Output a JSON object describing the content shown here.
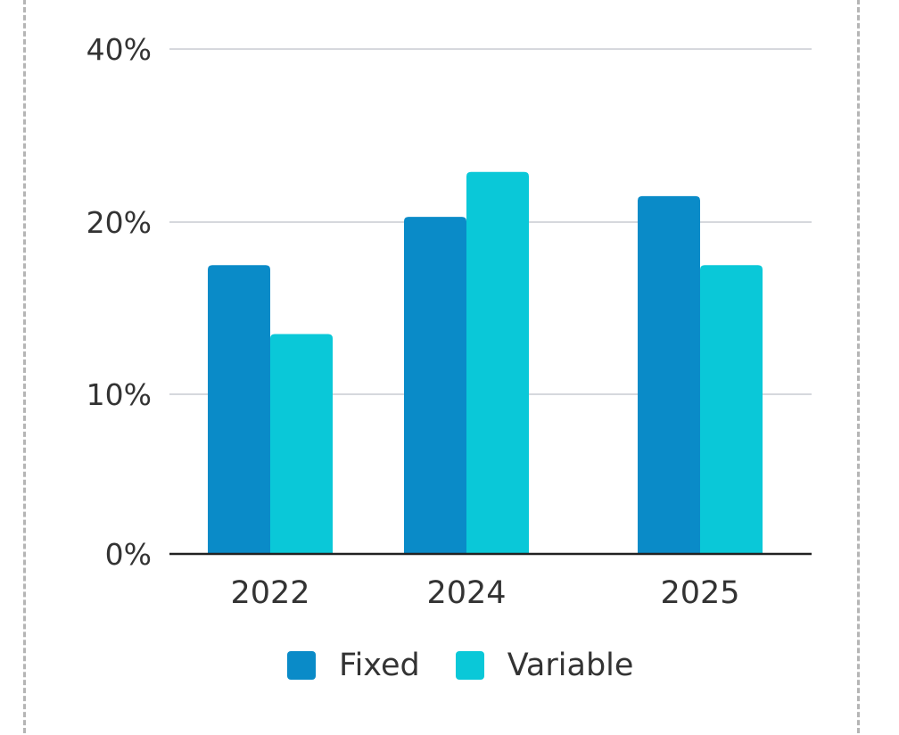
{
  "chart_data": {
    "type": "bar",
    "categories": [
      "2022",
      "2024",
      "2025"
    ],
    "series": [
      {
        "name": "Fixed",
        "color": "#0a8bc8",
        "values": [
          17.5,
          20.6,
          23.0
        ]
      },
      {
        "name": "Variable",
        "color": "#0ac8d8",
        "values": [
          13.5,
          25.8,
          17.5
        ]
      }
    ],
    "y_ticks": [
      {
        "value": 0,
        "label": "0%"
      },
      {
        "value": 10,
        "label": "10%"
      },
      {
        "value": 20,
        "label": "20%"
      },
      {
        "value": 40,
        "label": "40%"
      }
    ],
    "ylim": [
      0,
      40
    ],
    "grid": true,
    "legend_position": "bottom",
    "title": "",
    "xlabel": "",
    "ylabel": ""
  }
}
